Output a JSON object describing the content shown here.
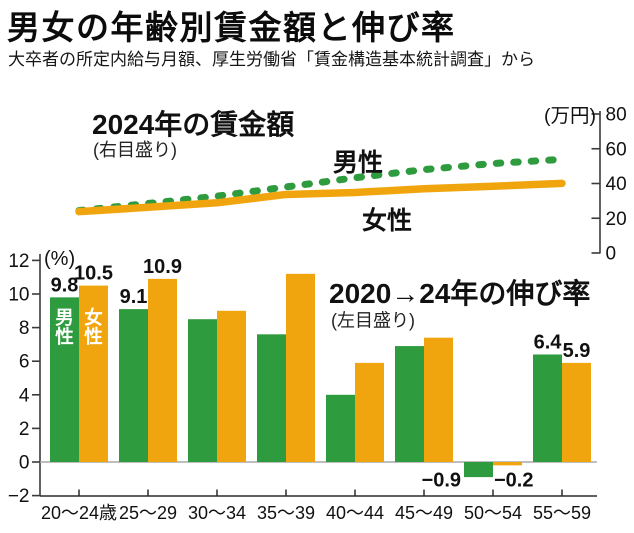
{
  "header": {
    "title": "男女の年齢別賃金額と伸び率",
    "subtitle": "大卒者の所定内給与月額、厚生労働省「賃金構造基本統計調査」から"
  },
  "colors": {
    "male": "#2e9b3e",
    "female": "#f0a50e",
    "text": "#111111",
    "axis": "#3a3a3a",
    "zero_line": "#a8a8a8",
    "inbar_text": "#ffffff"
  },
  "chart_data": [
    {
      "type": "line",
      "title": "2024年の賃金額",
      "subtitle": "(右目盛り)",
      "axis_unit": "(万円)",
      "axis_side": "right",
      "ylim": [
        0,
        80
      ],
      "yticks": [
        80,
        60,
        40,
        20,
        0
      ],
      "ytick_labels": [
        "80",
        "60",
        "40",
        "20",
        "0"
      ],
      "categories": [
        "20〜24歳",
        "25〜29",
        "30〜34",
        "35〜39",
        "40〜44",
        "45〜49",
        "50〜54",
        "55〜59"
      ],
      "series": [
        {
          "name": "男性",
          "style": "dashed",
          "color_key": "male",
          "values": [
            24.4,
            28.5,
            32.7,
            38.0,
            43.3,
            48.0,
            51.5,
            53.9
          ]
        },
        {
          "name": "女性",
          "style": "solid",
          "color_key": "female",
          "values": [
            23.8,
            26.3,
            28.9,
            33.7,
            34.8,
            37.0,
            38.4,
            40.1
          ]
        }
      ]
    },
    {
      "type": "bar",
      "title": "2020→24年の伸び率",
      "subtitle": "(左目盛り)",
      "axis_unit": "(%)",
      "axis_side": "left",
      "ylim": [
        -2,
        12
      ],
      "yticks": [
        12,
        10,
        8,
        6,
        4,
        2,
        0,
        -2
      ],
      "ytick_labels": [
        "12",
        "10",
        "8",
        "6",
        "4",
        "2",
        "0",
        "−2"
      ],
      "categories": [
        "20〜24歳",
        "25〜29",
        "30〜34",
        "35〜39",
        "40〜44",
        "45〜49",
        "50〜54",
        "55〜59"
      ],
      "series": [
        {
          "name": "男性",
          "color_key": "male",
          "values": [
            9.8,
            9.1,
            8.5,
            7.6,
            4.0,
            6.9,
            -0.9,
            6.4
          ]
        },
        {
          "name": "女性",
          "color_key": "female",
          "values": [
            10.5,
            10.9,
            9.0,
            11.2,
            5.9,
            7.4,
            -0.2,
            5.9
          ]
        }
      ],
      "value_labels": [
        {
          "s": 0,
          "g": 0,
          "t": "9.8"
        },
        {
          "s": 1,
          "g": 0,
          "t": "10.5"
        },
        {
          "s": 0,
          "g": 1,
          "t": "9.1"
        },
        {
          "s": 1,
          "g": 1,
          "t": "10.9"
        },
        {
          "s": 0,
          "g": 6,
          "t": "−0.9"
        },
        {
          "s": 1,
          "g": 6,
          "t": "−0.2"
        },
        {
          "s": 0,
          "g": 7,
          "t": "6.4"
        },
        {
          "s": 1,
          "g": 7,
          "t": "5.9"
        }
      ]
    }
  ]
}
